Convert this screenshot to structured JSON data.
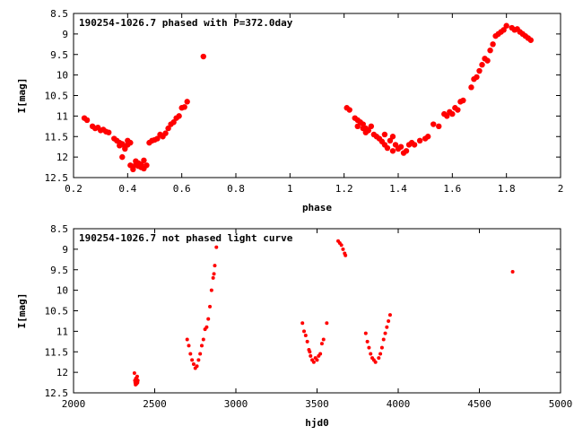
{
  "chart_data": [
    {
      "type": "scatter",
      "title": "190254-1026.7 phased with P=372.0day",
      "xlabel": "phase",
      "ylabel": "I[mag]",
      "xlim": [
        0.2,
        2.0
      ],
      "ylim": [
        8.5,
        12.5
      ],
      "y_inverted": true,
      "grid": false,
      "color": "#ff0000",
      "xticks": [
        "0.2",
        "0.4",
        "0.6",
        "0.8",
        "1",
        "1.2",
        "1.4",
        "1.6",
        "1.8",
        "2"
      ],
      "yticks": [
        "8.5",
        "9",
        "9.5",
        "10",
        "10.5",
        "11",
        "11.5",
        "12",
        "12.5"
      ],
      "points": [
        [
          0.24,
          11.05
        ],
        [
          0.25,
          11.1
        ],
        [
          0.27,
          11.25
        ],
        [
          0.28,
          11.3
        ],
        [
          0.29,
          11.28
        ],
        [
          0.3,
          11.35
        ],
        [
          0.31,
          11.33
        ],
        [
          0.32,
          11.38
        ],
        [
          0.33,
          11.4
        ],
        [
          0.35,
          11.55
        ],
        [
          0.36,
          11.6
        ],
        [
          0.37,
          11.65
        ],
        [
          0.37,
          11.72
        ],
        [
          0.38,
          11.68
        ],
        [
          0.38,
          12.0
        ],
        [
          0.39,
          11.75
        ],
        [
          0.39,
          11.8
        ],
        [
          0.4,
          11.6
        ],
        [
          0.4,
          11.7
        ],
        [
          0.41,
          11.65
        ],
        [
          0.41,
          12.2
        ],
        [
          0.42,
          12.25
        ],
        [
          0.42,
          12.3
        ],
        [
          0.43,
          12.1
        ],
        [
          0.43,
          12.18
        ],
        [
          0.44,
          12.22
        ],
        [
          0.44,
          12.15
        ],
        [
          0.45,
          12.25
        ],
        [
          0.45,
          12.18
        ],
        [
          0.46,
          12.08
        ],
        [
          0.46,
          12.28
        ],
        [
          0.47,
          12.2
        ],
        [
          0.48,
          11.65
        ],
        [
          0.49,
          11.6
        ],
        [
          0.5,
          11.58
        ],
        [
          0.51,
          11.55
        ],
        [
          0.52,
          11.45
        ],
        [
          0.53,
          11.5
        ],
        [
          0.54,
          11.42
        ],
        [
          0.55,
          11.3
        ],
        [
          0.56,
          11.2
        ],
        [
          0.57,
          11.15
        ],
        [
          0.58,
          11.05
        ],
        [
          0.59,
          11.0
        ],
        [
          0.6,
          10.8
        ],
        [
          0.61,
          10.78
        ],
        [
          0.62,
          10.65
        ],
        [
          0.68,
          9.55
        ],
        [
          1.21,
          10.8
        ],
        [
          1.22,
          10.85
        ],
        [
          1.24,
          11.05
        ],
        [
          1.25,
          11.1
        ],
        [
          1.25,
          11.25
        ],
        [
          1.26,
          11.15
        ],
        [
          1.27,
          11.2
        ],
        [
          1.27,
          11.3
        ],
        [
          1.28,
          11.3
        ],
        [
          1.28,
          11.4
        ],
        [
          1.29,
          11.35
        ],
        [
          1.3,
          11.25
        ],
        [
          1.31,
          11.45
        ],
        [
          1.32,
          11.5
        ],
        [
          1.33,
          11.55
        ],
        [
          1.34,
          11.62
        ],
        [
          1.35,
          11.7
        ],
        [
          1.35,
          11.45
        ],
        [
          1.36,
          11.78
        ],
        [
          1.37,
          11.6
        ],
        [
          1.38,
          11.85
        ],
        [
          1.38,
          11.5
        ],
        [
          1.39,
          11.7
        ],
        [
          1.4,
          11.8
        ],
        [
          1.41,
          11.75
        ],
        [
          1.42,
          11.9
        ],
        [
          1.43,
          11.85
        ],
        [
          1.44,
          11.7
        ],
        [
          1.45,
          11.65
        ],
        [
          1.46,
          11.7
        ],
        [
          1.48,
          11.6
        ],
        [
          1.5,
          11.55
        ],
        [
          1.51,
          11.5
        ],
        [
          1.53,
          11.2
        ],
        [
          1.55,
          11.25
        ],
        [
          1.57,
          10.95
        ],
        [
          1.58,
          11.0
        ],
        [
          1.59,
          10.9
        ],
        [
          1.6,
          10.95
        ],
        [
          1.61,
          10.8
        ],
        [
          1.62,
          10.85
        ],
        [
          1.63,
          10.65
        ],
        [
          1.64,
          10.62
        ],
        [
          1.67,
          10.3
        ],
        [
          1.68,
          10.1
        ],
        [
          1.69,
          10.05
        ],
        [
          1.7,
          9.9
        ],
        [
          1.71,
          9.75
        ],
        [
          1.72,
          9.6
        ],
        [
          1.73,
          9.65
        ],
        [
          1.74,
          9.4
        ],
        [
          1.75,
          9.25
        ],
        [
          1.76,
          9.05
        ],
        [
          1.77,
          9.0
        ],
        [
          1.78,
          8.95
        ],
        [
          1.79,
          8.9
        ],
        [
          1.8,
          8.8
        ],
        [
          1.82,
          8.85
        ],
        [
          1.83,
          8.9
        ],
        [
          1.84,
          8.88
        ],
        [
          1.85,
          8.95
        ],
        [
          1.86,
          9.0
        ],
        [
          1.87,
          9.05
        ],
        [
          1.88,
          9.1
        ],
        [
          1.89,
          9.15
        ]
      ]
    },
    {
      "type": "scatter",
      "title": "190254-1026.7 not phased light curve",
      "xlabel": "hjd0",
      "ylabel": "I[mag]",
      "xlim": [
        2000,
        5000
      ],
      "ylim": [
        8.5,
        12.5
      ],
      "y_inverted": true,
      "grid": false,
      "color": "#ff0000",
      "xticks": [
        "2000",
        "2500",
        "3000",
        "3500",
        "4000",
        "4500",
        "5000"
      ],
      "yticks": [
        "8.5",
        "9",
        "9.5",
        "10",
        "10.5",
        "11",
        "11.5",
        "12",
        "12.5"
      ],
      "points": [
        [
          2375,
          12.02
        ],
        [
          2378,
          12.2
        ],
        [
          2380,
          12.25
        ],
        [
          2382,
          12.3
        ],
        [
          2384,
          12.15
        ],
        [
          2386,
          12.22
        ],
        [
          2388,
          12.28
        ],
        [
          2390,
          12.18
        ],
        [
          2392,
          12.1
        ],
        [
          2394,
          12.25
        ],
        [
          2396,
          12.2
        ],
        [
          2700,
          11.2
        ],
        [
          2710,
          11.35
        ],
        [
          2720,
          11.55
        ],
        [
          2730,
          11.7
        ],
        [
          2740,
          11.8
        ],
        [
          2750,
          11.9
        ],
        [
          2760,
          11.85
        ],
        [
          2770,
          11.7
        ],
        [
          2780,
          11.55
        ],
        [
          2790,
          11.35
        ],
        [
          2800,
          11.2
        ],
        [
          2810,
          10.95
        ],
        [
          2820,
          10.9
        ],
        [
          2830,
          10.7
        ],
        [
          2840,
          10.4
        ],
        [
          2850,
          10.0
        ],
        [
          2860,
          9.7
        ],
        [
          2865,
          9.6
        ],
        [
          2870,
          9.4
        ],
        [
          2880,
          8.95
        ],
        [
          3410,
          10.8
        ],
        [
          3420,
          11.0
        ],
        [
          3430,
          11.1
        ],
        [
          3440,
          11.25
        ],
        [
          3450,
          11.45
        ],
        [
          3455,
          11.5
        ],
        [
          3460,
          11.6
        ],
        [
          3470,
          11.7
        ],
        [
          3480,
          11.75
        ],
        [
          3490,
          11.65
        ],
        [
          3500,
          11.7
        ],
        [
          3510,
          11.6
        ],
        [
          3520,
          11.55
        ],
        [
          3530,
          11.3
        ],
        [
          3540,
          11.2
        ],
        [
          3560,
          10.8
        ],
        [
          3630,
          8.8
        ],
        [
          3640,
          8.85
        ],
        [
          3650,
          8.9
        ],
        [
          3660,
          9.0
        ],
        [
          3670,
          9.1
        ],
        [
          3675,
          9.15
        ],
        [
          3800,
          11.05
        ],
        [
          3810,
          11.25
        ],
        [
          3820,
          11.4
        ],
        [
          3830,
          11.55
        ],
        [
          3840,
          11.65
        ],
        [
          3850,
          11.7
        ],
        [
          3860,
          11.75
        ],
        [
          3880,
          11.65
        ],
        [
          3890,
          11.55
        ],
        [
          3900,
          11.4
        ],
        [
          3910,
          11.2
        ],
        [
          3920,
          11.05
        ],
        [
          3930,
          10.9
        ],
        [
          3940,
          10.75
        ],
        [
          3950,
          10.6
        ],
        [
          4705,
          9.55
        ]
      ]
    }
  ]
}
